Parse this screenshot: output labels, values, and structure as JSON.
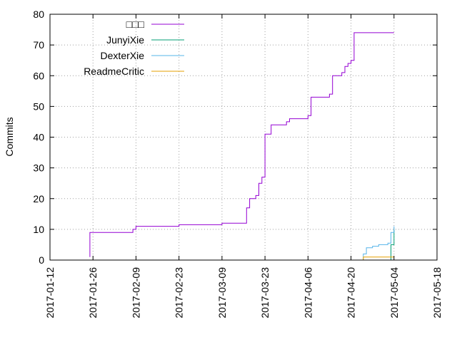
{
  "chart_data": {
    "type": "line",
    "xlabel": "",
    "ylabel": "Commits",
    "ylim": [
      0,
      80
    ],
    "xlim": [
      "2017-01-12",
      "2017-05-18"
    ],
    "x_ticks": [
      "2017-01-12",
      "2017-01-26",
      "2017-02-09",
      "2017-02-23",
      "2017-03-09",
      "2017-03-23",
      "2017-04-06",
      "2017-04-20",
      "2017-05-04",
      "2017-05-18"
    ],
    "y_ticks": [
      0,
      10,
      20,
      30,
      40,
      50,
      60,
      70,
      80
    ],
    "grid": "dotted",
    "legend_position": "top-left",
    "series": [
      {
        "name": "□□□",
        "color": "#9400d3",
        "points": [
          [
            "2017-01-25",
            1
          ],
          [
            "2017-01-25",
            9
          ],
          [
            "2017-02-08",
            10
          ],
          [
            "2017-02-09",
            11
          ],
          [
            "2017-02-23",
            11.5
          ],
          [
            "2017-03-09",
            12
          ],
          [
            "2017-03-16",
            12
          ],
          [
            "2017-03-17",
            12.5
          ],
          [
            "2017-03-17",
            17
          ],
          [
            "2017-03-18",
            20
          ],
          [
            "2017-03-20",
            21
          ],
          [
            "2017-03-21",
            25
          ],
          [
            "2017-03-22",
            27
          ],
          [
            "2017-03-23",
            30
          ],
          [
            "2017-03-23",
            41
          ],
          [
            "2017-03-25",
            44
          ],
          [
            "2017-03-30",
            45
          ],
          [
            "2017-03-31",
            46
          ],
          [
            "2017-04-06",
            47
          ],
          [
            "2017-04-07",
            53
          ],
          [
            "2017-04-13",
            54
          ],
          [
            "2017-04-14",
            60
          ],
          [
            "2017-04-17",
            61
          ],
          [
            "2017-04-18",
            63
          ],
          [
            "2017-04-19",
            64
          ],
          [
            "2017-04-20",
            65
          ],
          [
            "2017-04-21",
            74
          ],
          [
            "2017-05-04",
            74
          ]
        ]
      },
      {
        "name": "JunyiXie",
        "color": "#009e73",
        "points": [
          [
            "2017-05-02",
            0
          ],
          [
            "2017-05-03",
            5
          ],
          [
            "2017-05-04",
            10
          ]
        ]
      },
      {
        "name": "DexterXie",
        "color": "#56b4e9",
        "points": [
          [
            "2017-04-21",
            0
          ],
          [
            "2017-04-24",
            2
          ],
          [
            "2017-04-25",
            4
          ],
          [
            "2017-04-27",
            4.5
          ],
          [
            "2017-04-29",
            5
          ],
          [
            "2017-05-01",
            5
          ],
          [
            "2017-05-02",
            5.5
          ],
          [
            "2017-05-03",
            7
          ],
          [
            "2017-05-03",
            9
          ],
          [
            "2017-05-04",
            10
          ],
          [
            "2017-05-04",
            11
          ]
        ]
      },
      {
        "name": "ReadmeCritic",
        "color": "#e69f00",
        "points": [
          [
            "2017-04-23",
            0
          ],
          [
            "2017-04-24",
            1
          ],
          [
            "2017-05-04",
            1
          ]
        ]
      }
    ]
  }
}
